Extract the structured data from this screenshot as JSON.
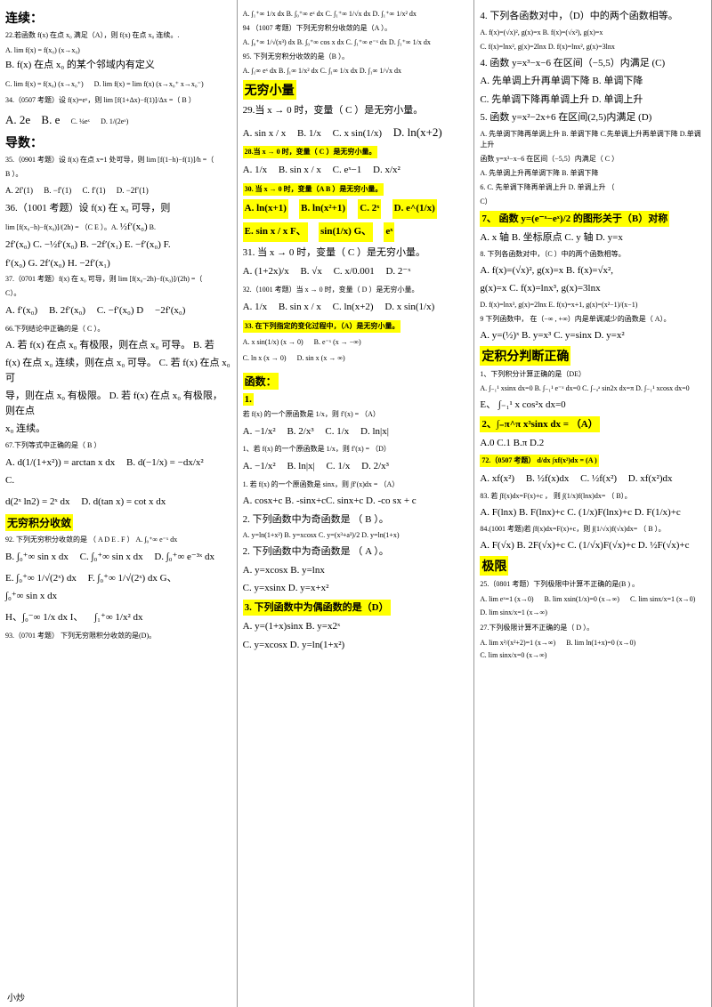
{
  "footer": "小炒",
  "col1": {
    "h1": "连续：",
    "q22": "22.若函数 f(x) 在点 x₀ 满足（A），则 f(x) 在点 x₀ 连续。.",
    "q22_a": "A. lim f(x) = f(x₀)  (x→x₀)",
    "q22_b": "B. f(x) 在点 x₀ 的某个邻域内有定义",
    "q22_c": "C. lim f(x) = f(x₀)  (x→x₀⁺)",
    "q22_d": "D. lim f(x) = lim f(x)  (x→x₀⁺  x→x₀⁻)",
    "q34": "34.（0507 考题）设 f(x)=eˣ，则 lim [f(1+Δx)−f(1)]/Δx =（  B  ）",
    "q34_a": "A. 2e",
    "q34_b": "B. e",
    "q34_c": "C. ¼eˣ",
    "q34_d": "D. 1/(2eˣ)",
    "h2": "导数：",
    "q35": "35.（0901 考题）设 f(x) 在点 x=1 处可导，则 lim [f(1−h)−f(1)]/h =（",
    "q35_end": "B ）。",
    "q35_a": "A. 2f′(1)",
    "q35_b": "B. −f′(1)",
    "q35_c": "C. f′(1)",
    "q35_d": "D. −2f′(1)",
    "q36": "36.（1001 考题）设 f(x) 在 x₀ 可导，则",
    "q36_lim": "lim [f(x₀−h)−f(x₀)]/(2h) = （C  E        ）。A.",
    "q36_a2": "½f′(x₀)",
    "q36_b": "B.",
    "q36_row2": "2f′(x₀) C.   −½f′(x₀)    B.   −2f′(x₁) E.   −f′(x₀) F.",
    "q36_row3": "f′(x₀) G.   2f′(x₀) H.   −2f′(x₁)",
    "q37": "37.（0701 考题）f(x) 在 x₀ 可导，则 lim [f(x₀−2h)−f(x₀)]/(2h) =（",
    "q37_end": "C）。",
    "q37_a": "A. f′(x₀)",
    "q37_b": "B. 2f′(x₀)",
    "q37_c": "C. −f′(x₀) D",
    "q37_d": "−2f′(x₀)",
    "q66": "66.下列结论中正确的是（ C ）。",
    "q66_a": "A. 若 f(x) 在点 x₀ 有极限，则在点 x₀ 可导。          B. 若",
    "q66_b": "f(x) 在点 x₀ 连续，则在点 x₀ 可导。   C. 若 f(x) 在点 x₀ 可",
    "q66_c": "导，则在点 x₀ 有极限。     D. 若 f(x) 在点 x₀ 有极限，则在点",
    "q66_d": "x₀ 连续。",
    "q67": "67.下列等式中正确的是（ B ）",
    "q67_a": "A. d(1/(1+x²)) = arctan x dx",
    "q67_b": "B. d(−1/x) = −dx/x²",
    "q67_c": "C.",
    "q67_row2": "d(2ˣ ln2) = 2ˣ dx",
    "q67_d": "D. d(tan x) = cot x dx",
    "h3": "无穷积分收敛",
    "q92": "92. 下列无穷积分收敛的是 （ A D E . F ）     A. ∫₀⁺∞ e⁻ˣ dx",
    "q92_b": "B. ∫₀⁺∞ sin x dx",
    "q92_c": "C. ∫₀⁺∞ sin x dx",
    "q92_d": "D. ∫₀⁺∞ e⁻³ˣ dx",
    "q92_e": "E. ∫₀⁺∞ 1/√(2ˣ) dx",
    "q92_f": "F. ∫₀⁺∞ 1/√(2ˣ) dx G、",
    "q92_g": "∫₀⁺∞ sin x dx",
    "q92_h": "H、∫₀⁻∞ 1/x dx I、",
    "q92_i": "∫₁⁺∞ 1/x² dx",
    "q93": "93.（0701 考题）  下列无穷限积分收敛的是(D)。"
  },
  "col2": {
    "q93_opts": "A. ∫₁⁺∞ 1/x dx   B. ∫₀⁺∞ eˣ dx   C. ∫₁⁺∞ 1/√x dx   D. ∫₁⁺∞ 1/x² dx",
    "q94": "94 （1007 考题）下列无穷积分收敛的是（A  ）。",
    "q94_opts": "A. ∫₀⁺∞ 1/√(x³) dx  B. ∫₀⁺∞ cos x dx   C. ∫₁⁺∞ e⁻ˣ dx  D. ∫₁⁺∞ 1/x dx",
    "q95": "95. 下列无穷积分收敛的是（B  ）。",
    "q95_opts": "A. ∫₁∞ eˣ dx B. ∫₁∞ 1/x² dx C. ∫₁∞ 1/x dx D. ∫₁∞ 1/√x dx",
    "h1": "无穷小量",
    "q29": "29.当 x → 0 时，变量（ C ）是无穷小量。",
    "q29_a": "A. sin x / x",
    "q29_b": "B. 1/x",
    "q29_c": "C. x sin(1/x)",
    "q29_d": "D. ln(x+2)",
    "q28": "28.当 x → 0 时，变量（    C  ）是无穷小量。",
    "q28_a": "A. 1/x",
    "q28_b": "B. sin x / x",
    "q28_c": "C. eˣ−1",
    "q28_d": "D. x/x²",
    "q30": "30. 当 x → 0 时，变量（A  B ）是无穷小量。",
    "q30_a": "A. ln(x+1)",
    "q30_b": "B. ln(x²+1)",
    "q30_c": "C. 2ˣ",
    "q30_d": "D. e^(1/x)",
    "q30_e": "E. sin x / x  F、",
    "q30_f": "sin(1/x)  G、",
    "q30_g": "eˣ",
    "q31": "31. 当 x → 0 时，变量（ C ）是无穷小量。",
    "q31_a": "A. (1+2x)/x",
    "q31_b": "B. √x",
    "q31_c": "C. x/0.001",
    "q31_d": "D. 2⁻ˣ",
    "q32": "32.（1001 考题）当 x → 0 时，变量（   D ）是无穷小量。",
    "q32_a": "A. 1/x",
    "q32_b": "B. sin x / x",
    "q32_c": "C. ln(x+2)",
    "q32_d": "D. x sin(1/x)",
    "q33": "33.  在下列指定的变化过程中，（A）是无穷小量。",
    "q33_a": "A. x sin(1/x)  (x → 0)",
    "q33_b": "B. e⁻ˣ  (x → −∞)",
    "q33_c": "C. ln x  (x → 0)",
    "q33_d": "D. sin x  (x → ∞)",
    "h2": "函数：",
    "h2_1": "1.",
    "q1": "若 f(x) 的一个原函数是 1/x，则 f′(x) =   （A）",
    "q1_a": "A. −1/x²",
    "q1_b": "B. 2/x³",
    "q1_c": "C. 1/x",
    "q1_d": "D. ln|x|",
    "q1b": "1、若 f(x) 的一个原函数是 1/x，则 f′(x) =   （D）",
    "q1b_a": "A. −1/x²",
    "q1b_b": "B. ln|x|",
    "q1b_c": "C. 1/x",
    "q1b_d": "D. 2/x³",
    "q1c": "1.  若 f(x) 的一个原函数是 sinx，则 ∫f′(x)dx =  （A）",
    "q1c_opts": "A. cosx+c B. -sinx+cC. sinx+c D. -co sx + c",
    "q2": "2. 下列函数中为奇函数是 （ B ）。",
    "q2_opts": "A. y=ln(1+x²) B. y=xcosx  C. y=(x³+a³)/2  D. y=ln(1+x)",
    "q2b": "2. 下列函数中为奇函数是 （ A ）。",
    "q2b_a": "A. y=xcosx  B. y=lnx",
    "q2b_c": "C. y=xsinx   D. y=x+x²",
    "q3": "3. 下列函数中为偶函数的是（D）",
    "q3_a": "A. y=(1+x)sinx B. y=x2ˣ",
    "q3_c": "C. y=xcosx       D. y=ln(1+x²)"
  },
  "col3": {
    "q4": "4. 下列各函数对中，（D）中的两个函数相等。",
    "q4_a": "A. f(x)=(√x)², g(x)=x  B. f(x)=(√x²), g(x)=x",
    "q4_c": "C. f(x)=lnx², g(x)=2lnx  D. f(x)=lnx², g(x)=3lnx",
    "q4b": "4.   函数 y=x³−x−6 在区间（−5,5）内满足   (C)",
    "q4b_a": "A. 先单调上升再单调下降 B.  单调下降",
    "q4b_c": "C. 先单调下降再单调上升 D.  单调上升",
    "q5": "5.   函数 y=x²−2x+6 在区间(2,5)内满足 (D)",
    "q5_opts": "A. 先单调下降再单调上升 B. 单调下降 C.先单调上升再单调下降 D.单调上升",
    "q5b": "函数 y=x³−x−6 在区间（−5,5）内满足（ C ）",
    "q5b_a": "A. 先单调上升再单调下降           B. 单调下降",
    "q5b_c": "6.   C. 先单调下降再单调上升             D. 单调上升   （",
    "q5b_d": "C）",
    "q7": "7、 函数 y=(e⁻ˣ−eˣ)/2 的图形关于（B）对称",
    "q7_a": "A. x 轴     B. 坐标原点     C. y 轴    D. y=x",
    "q8": "8. 下列各函数对中，（C  ）中的两个函数相等。",
    "q8_a": "A.   f(x)=(√x)²,  g(x)=x         B.   f(x)=√x²,",
    "q8_b": "g(x)=x    C. f(x)=lnx³,  g(x)=3lnx",
    "q8_d": "D. f(x)=lnx³,  g(x)=2lnx    E. f(x)=x+1,   g(x)=(x²−1)/(x−1)",
    "q9": "9 下列函数中，  在（−∞ , +∞）内是单调减少的函数是（ A）。",
    "q9_opts": "A. y=(½)ˣ B. y=x³ C. y=sinx  D. y=x²",
    "h1": "定积分判断正确",
    "q1": "1、下列积分计算正确的是（DE）",
    "q1_a": "A. ∫₋₁¹ xsinx dx=0 B. ∫₋₁¹ e⁻ˣ dx=0 C. ∫₋ₐᵃ sin2x dx=π  D. ∫₋₁¹ xcosx dx=0",
    "q1_e": "E、 ∫₋₁¹ x cos²x dx=0",
    "q2": "2、∫₋π^π x³sinx dx =   （A）",
    "q2_opts": "A.0    C.1     B.π     D.2",
    "q72": "72.（0507 考题）   d/dx ∫xf(x²)dx = (A       )",
    "q72_a": "A. xf(x²)",
    "q72_b": "B. ½f(x)dx",
    "q72_c": "C. ½f(x²)",
    "q72_d": "D. xf(x²)dx",
    "q83": "83. 若 ∫f(x)dx=F(x)+c ，  则 ∫(1/x)f(lnx)dx=  （ B）。",
    "q83_a": "A. F(lnx) B. F(lnx)+c  C. (1/x)F(lnx)+c  D. F(1/x)+c",
    "q84": "84.(1001 考题)若 ∫f(x)dx=F(x)+c，则 ∫(1/√x)f(√x)dx=  （ B  ）。",
    "q84_a": "A. F(√x)   B. 2F(√x)+c   C. (1/√x)F(√x)+c   D. ½F(√x)+c",
    "h2": "极限",
    "q25": "25.（0801 考题）下列极限中计算不正确的是(B  )  。",
    "q25_a": "A. lim eˣ=1 (x→0)",
    "q25_b": "B. lim xsin(1/x)=0 (x→∞)",
    "q25_c": "C. lim sinx/x=1 (x→0)",
    "q25_d": "D. lim sinx/x=1 (x→∞)",
    "q27": "27.下列极限计算不正确的是（ D ）。",
    "q27_a": "A. lim x²/(x²+2)=1 (x→∞)",
    "q27_b": "B. lim ln(1+x)=0 (x→0)",
    "q27_c": "C. lim sinx/x=0 (x→∞)"
  }
}
